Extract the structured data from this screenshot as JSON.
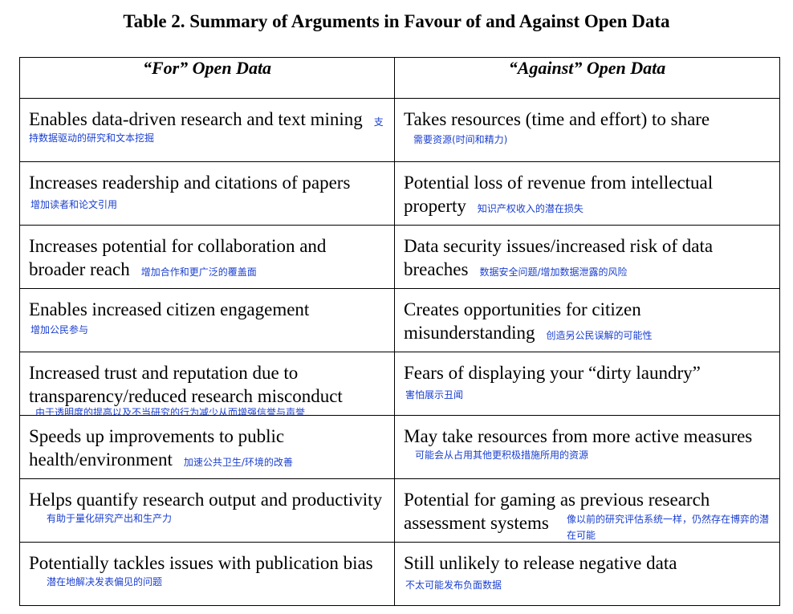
{
  "title": "Table 2. Summary of Arguments in Favour of and Against Open Data",
  "header": {
    "for": "“For” Open Data",
    "against": "“Against” Open Data"
  },
  "rows": [
    {
      "for_en": "Enables data-driven research and text mining",
      "for_zh": "支持数据驱动的研究和文本挖掘",
      "against_en": "Takes resources (time and effort) to share",
      "against_zh": "需要资源(时间和精力)"
    },
    {
      "for_en": "Increases readership and citations of papers",
      "for_zh": "增加读者和论文引用",
      "against_en": "Potential loss of revenue from intellectual property",
      "against_zh": "知识产权收入的潜在损失"
    },
    {
      "for_en": "Increases potential for collaboration and broader reach",
      "for_zh": "增加合作和更广泛的覆盖面",
      "against_en": "Data security issues/increased risk of data breaches",
      "against_zh": "数据安全问题/增加数据泄露的风险"
    },
    {
      "for_en": "Enables increased citizen engagement",
      "for_zh": "增加公民参与",
      "against_en": "Creates opportunities for citizen misunderstanding",
      "against_zh": "创造另公民误解的可能性"
    },
    {
      "for_en": "Increased trust and reputation due to transparency/reduced research misconduct",
      "for_zh": "由于透明度的提高以及不当研究的行为减少从而增强信誉与声誉",
      "against_en": "Fears of displaying your “dirty laundry”",
      "against_zh": "害怕展示丑闻"
    },
    {
      "for_en": "Speeds up improvements to public health/environment",
      "for_zh": "加速公共卫生/环境的改善",
      "against_en": "May take resources from more active measures",
      "against_zh": "可能会从占用其他更积极措施所用的资源"
    },
    {
      "for_en": "Helps quantify research output and productivity",
      "for_zh": "有助于量化研究产出和生产力",
      "against_en": "Potential for gaming as previous research assessment systems",
      "against_zh": "像以前的研究评估系统一样，仍然存在博弈的潜在可能"
    },
    {
      "for_en": "Potentially tackles issues with publication bias",
      "for_zh": "潜在地解决发表偏见的问题",
      "against_en": "Still unlikely to release negative data",
      "against_zh": "不太可能发布负面数据"
    }
  ]
}
